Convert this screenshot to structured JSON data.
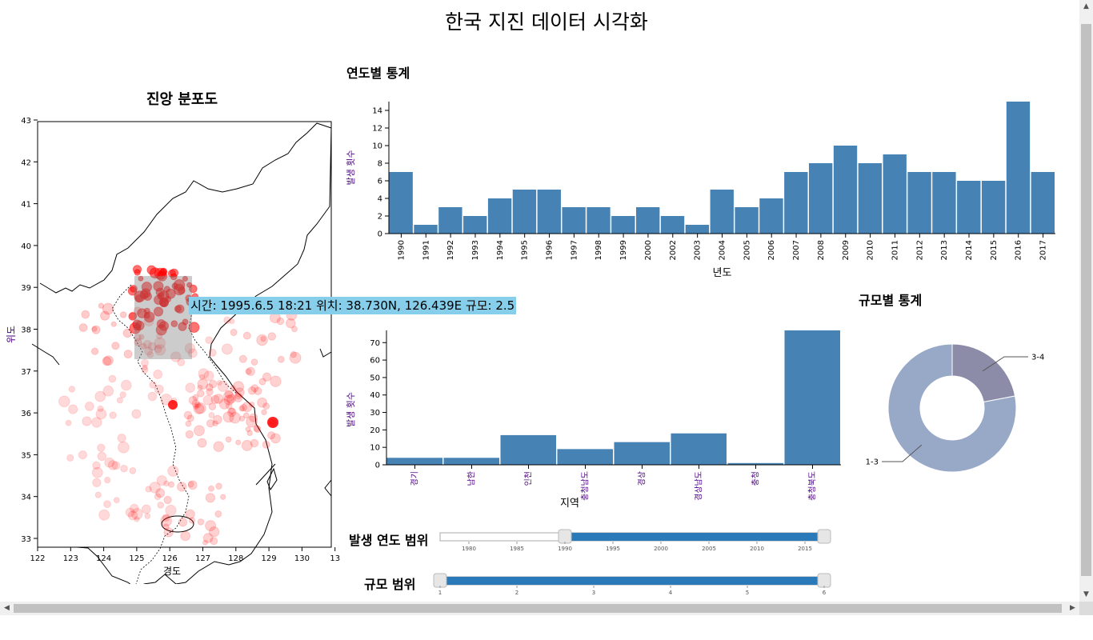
{
  "page": {
    "title": "한국 지진 데이터 시각화"
  },
  "map": {
    "title": "진앙 분포도",
    "xlabel": "경도",
    "ylabel": "위도",
    "x_ticks": [
      "122",
      "123",
      "124",
      "125",
      "126",
      "127",
      "128",
      "129",
      "130",
      "13"
    ],
    "y_ticks": [
      "43",
      "42",
      "41",
      "40",
      "39",
      "38",
      "37",
      "36",
      "35",
      "34",
      "33"
    ],
    "point_color": "#ff0000"
  },
  "tooltip": {
    "text": "시간: 1995.6.5 18:21 위치: 38.730N, 126.439E 규모: 2.5"
  },
  "year_chart": {
    "title": "연도별 통계"
  },
  "region_chart": {},
  "magnitude_chart": {
    "title": "규모별 통계"
  },
  "sliders": {
    "year": {
      "label": "발생 연도 범위",
      "ticks": [
        "1980",
        "1985",
        "1990",
        "1995",
        "2000",
        "2005",
        "2010",
        "2015"
      ],
      "min": 1977,
      "max": 2017,
      "from": 1990,
      "to": 2017
    },
    "magnitude": {
      "label": "규모 범위",
      "ticks": [
        "1",
        "2",
        "3",
        "4",
        "5",
        "6"
      ],
      "min": 1,
      "max": 6,
      "from": 1,
      "to": 6
    }
  },
  "chart_data": [
    {
      "type": "bar",
      "categories": [
        "1990",
        "1991",
        "1992",
        "1993",
        "1994",
        "1995",
        "1996",
        "1997",
        "1998",
        "1999",
        "2000",
        "2002",
        "2003",
        "2004",
        "2005",
        "2006",
        "2007",
        "2008",
        "2009",
        "2010",
        "2011",
        "2012",
        "2013",
        "2014",
        "2015",
        "2016",
        "2017"
      ],
      "values": [
        7,
        1,
        3,
        2,
        4,
        5,
        5,
        3,
        3,
        2,
        3,
        2,
        1,
        5,
        3,
        4,
        7,
        8,
        10,
        8,
        9,
        7,
        7,
        6,
        6,
        15,
        7
      ],
      "xlabel": "년도",
      "ylabel": "발생 횟수",
      "y_ticks": [
        0,
        2,
        4,
        6,
        8,
        10,
        12,
        14
      ],
      "ylim": [
        0,
        15
      ],
      "color": "#4682b4"
    },
    {
      "type": "bar",
      "categories": [
        "경기",
        "남한",
        "인천",
        "충청남도",
        "경상",
        "경상남도",
        "충청",
        "충청북도"
      ],
      "values": [
        4,
        4,
        17,
        9,
        13,
        18,
        1,
        77
      ],
      "xlabel": "지역",
      "ylabel": "발생 횟수",
      "y_ticks": [
        0,
        10,
        20,
        30,
        40,
        50,
        60,
        70
      ],
      "ylim": [
        0,
        77
      ],
      "color": "#4682b4"
    },
    {
      "type": "pie",
      "categories": [
        "3-4",
        "1-3"
      ],
      "values": [
        22,
        78
      ],
      "colors": [
        "#8c8ca8",
        "#97a9c6"
      ]
    }
  ]
}
